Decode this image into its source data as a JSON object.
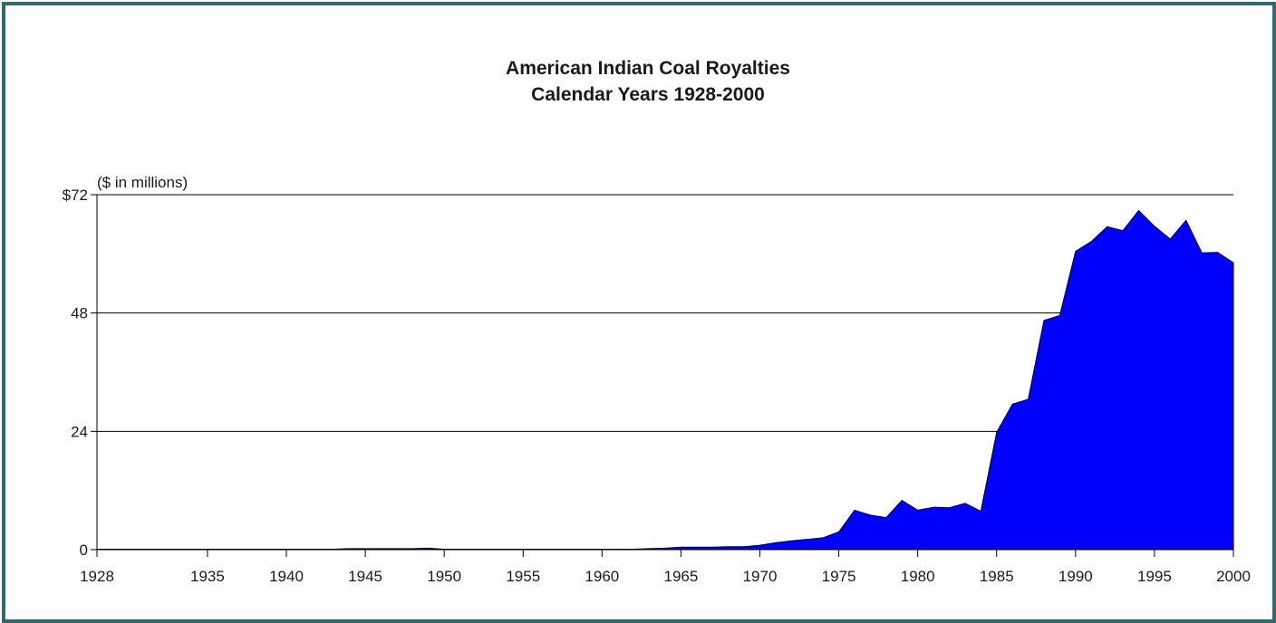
{
  "chart_data": {
    "type": "area",
    "title": "American Indian Coal Royalties",
    "subtitle": "Calendar Years 1928-2000",
    "unit_label": "($ in millions)",
    "ylim": [
      0,
      72
    ],
    "xlim": [
      1928,
      2000
    ],
    "y_ticks": [
      {
        "value": 0,
        "label": "0"
      },
      {
        "value": 24,
        "label": "24"
      },
      {
        "value": 48,
        "label": "48"
      },
      {
        "value": 72,
        "label": "$72"
      }
    ],
    "x_ticks": [
      {
        "value": 1928,
        "label": "1928"
      },
      {
        "value": 1935,
        "label": "1935"
      },
      {
        "value": 1940,
        "label": "1940"
      },
      {
        "value": 1945,
        "label": "1945"
      },
      {
        "value": 1950,
        "label": "1950"
      },
      {
        "value": 1955,
        "label": "1955"
      },
      {
        "value": 1960,
        "label": "1960"
      },
      {
        "value": 1965,
        "label": "1965"
      },
      {
        "value": 1970,
        "label": "1970"
      },
      {
        "value": 1975,
        "label": "1975"
      },
      {
        "value": 1980,
        "label": "1980"
      },
      {
        "value": 1985,
        "label": "1985"
      },
      {
        "value": 1990,
        "label": "1990"
      },
      {
        "value": 1995,
        "label": "1995"
      },
      {
        "value": 2000,
        "label": "2000"
      }
    ],
    "gridlines": true,
    "colors": {
      "fill": "#0000ff",
      "stroke": "#000000",
      "frame": "#2f6b6e"
    },
    "series": [
      {
        "x": [
          1928,
          1929,
          1930,
          1931,
          1932,
          1933,
          1934,
          1935,
          1936,
          1937,
          1938,
          1939,
          1940,
          1941,
          1942,
          1943,
          1944,
          1945,
          1946,
          1947,
          1948,
          1949,
          1950,
          1951,
          1952,
          1953,
          1954,
          1955,
          1956,
          1957,
          1958,
          1959,
          1960,
          1961,
          1962,
          1963,
          1964,
          1965,
          1966,
          1967,
          1968,
          1969,
          1970,
          1971,
          1972,
          1973,
          1974,
          1975,
          1976,
          1977,
          1978,
          1979,
          1980,
          1981,
          1982,
          1983,
          1984,
          1985,
          1986,
          1987,
          1988,
          1989,
          1990,
          1991,
          1992,
          1993,
          1994,
          1995,
          1996,
          1997,
          1998,
          1999,
          2000
        ],
        "values": [
          0.1,
          0.1,
          0.1,
          0.1,
          0.1,
          0.1,
          0.1,
          0.1,
          0.1,
          0.1,
          0.1,
          0.1,
          0.1,
          0.1,
          0.1,
          0.1,
          0.2,
          0.2,
          0.2,
          0.2,
          0.2,
          0.3,
          0.1,
          0.1,
          0.1,
          0.1,
          0.1,
          0.1,
          0.1,
          0.1,
          0.1,
          0.1,
          0.1,
          0.1,
          0.1,
          0.2,
          0.3,
          0.5,
          0.5,
          0.5,
          0.6,
          0.6,
          0.9,
          1.4,
          1.8,
          2.1,
          2.4,
          3.6,
          8.0,
          7.0,
          6.5,
          10.0,
          8.0,
          8.6,
          8.5,
          9.4,
          7.8,
          23.8,
          29.5,
          30.5,
          46.5,
          47.5,
          60.5,
          62.5,
          65.5,
          64.7,
          68.8,
          65.6,
          63.0,
          66.8,
          60.2,
          60.3,
          58.2
        ]
      }
    ]
  }
}
